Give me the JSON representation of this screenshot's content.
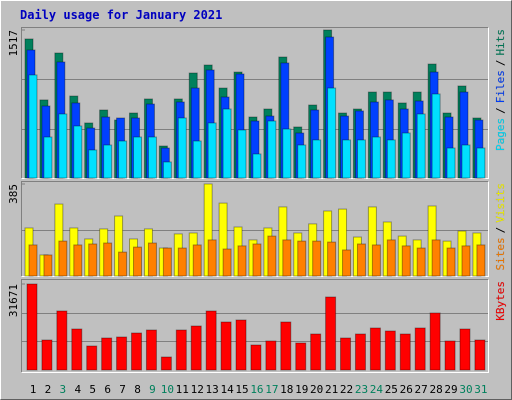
{
  "title": "Daily usage for January 2021",
  "legend_separator": "/",
  "weekend_color": "#00805c",
  "weekend_days": [
    3,
    9,
    10,
    16,
    17,
    23,
    24,
    30,
    31
  ],
  "chart_data": [
    {
      "type": "bar",
      "ylim": [
        0,
        1517
      ],
      "yticks": [
        1517
      ],
      "ygrid": [
        506,
        1011
      ],
      "series": [
        {
          "name": "Hits",
          "color": "#00805c",
          "values": [
            1425,
            800,
            1281,
            840,
            564,
            697,
            594,
            666,
            810,
            328,
            810,
            1076,
            1158,
            922,
            1086,
            625,
            707,
            1240,
            523,
            748,
            1517,
            666,
            707,
            881,
            881,
            769,
            881,
            1168,
            666,
            943,
            615
          ]
        },
        {
          "name": "Files",
          "color": "#0040ff",
          "values": [
            1312,
            738,
            1189,
            769,
            512,
            625,
            615,
            615,
            758,
            307,
            779,
            922,
            1107,
            830,
            1066,
            584,
            635,
            1179,
            461,
            697,
            1445,
            635,
            687,
            779,
            800,
            707,
            789,
            1086,
            625,
            881,
            594
          ]
        },
        {
          "name": "Pages",
          "color": "#00e0ff",
          "values": [
            1056,
            420,
            656,
            533,
            287,
            338,
            379,
            420,
            420,
            164,
            615,
            379,
            564,
            707,
            492,
            246,
            584,
            502,
            338,
            390,
            922,
            390,
            390,
            420,
            390,
            461,
            656,
            861,
            307,
            338,
            307
          ]
        }
      ]
    },
    {
      "type": "bar",
      "ylim": [
        0,
        385
      ],
      "yticks": [
        385
      ],
      "ygrid": [
        193
      ],
      "series": [
        {
          "name": "Visits",
          "color": "#ffff00",
          "values": [
            201,
            88,
            301,
            201,
            155,
            197,
            251,
            155,
            197,
            117,
            176,
            180,
            385,
            305,
            205,
            151,
            201,
            289,
            180,
            218,
            272,
            280,
            163,
            289,
            226,
            167,
            151,
            293,
            146,
            188,
            180
          ]
        },
        {
          "name": "Sites",
          "color": "#ff8000",
          "values": [
            130,
            88,
            146,
            130,
            134,
            138,
            100,
            121,
            138,
            117,
            117,
            130,
            151,
            113,
            126,
            134,
            167,
            151,
            146,
            146,
            142,
            109,
            134,
            130,
            151,
            126,
            117,
            151,
            117,
            126,
            130
          ]
        }
      ]
    },
    {
      "type": "bar",
      "ylim": [
        0,
        31671
      ],
      "yticks": [
        31671
      ],
      "ygrid": [
        10557,
        21114
      ],
      "categories": [
        "1",
        "2",
        "3",
        "4",
        "5",
        "6",
        "7",
        "8",
        "9",
        "10",
        "11",
        "12",
        "13",
        "14",
        "15",
        "16",
        "17",
        "18",
        "19",
        "20",
        "21",
        "22",
        "23",
        "24",
        "25",
        "26",
        "27",
        "28",
        "29",
        "30",
        "31"
      ],
      "series": [
        {
          "name": "KBytes",
          "color": "#ff0000",
          "values": [
            31671,
            11048,
            21728,
            15099,
            8839,
            11785,
            12153,
            13626,
            14731,
            4787,
            14731,
            16204,
            21728,
            17677,
            18414,
            9207,
            10680,
            17677,
            9943,
            13258,
            26884,
            11785,
            13258,
            15468,
            14363,
            13258,
            15468,
            20992,
            10680,
            15099,
            11048
          ]
        }
      ]
    }
  ]
}
